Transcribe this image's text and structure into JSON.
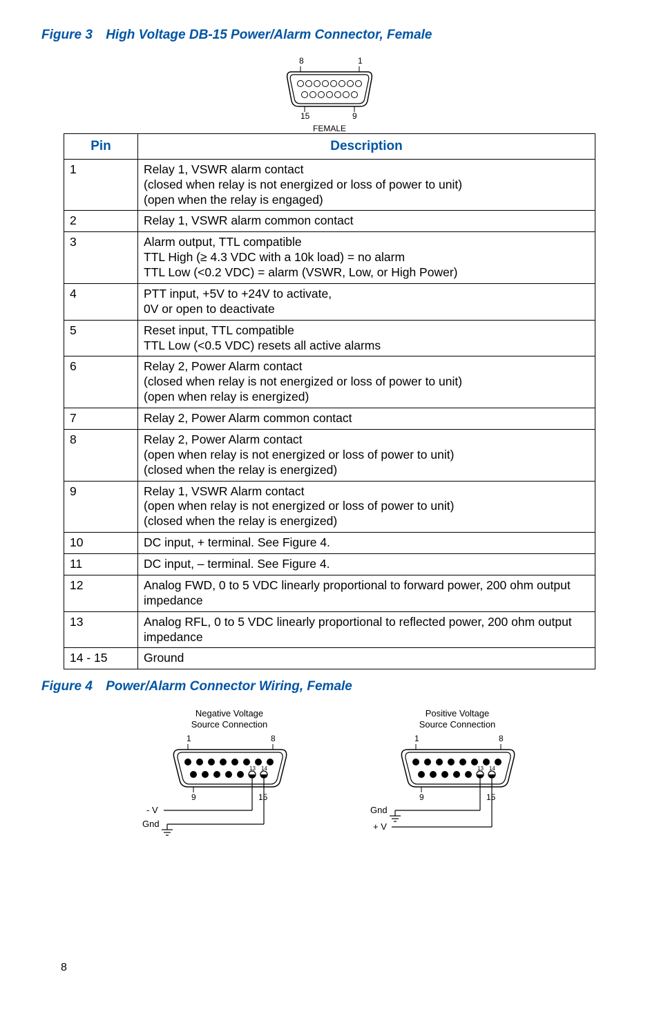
{
  "figure3": {
    "label": "Figure 3",
    "title": "High Voltage DB-15 Power/Alarm Connector, Female",
    "connector": {
      "top_left_num": "8",
      "top_right_num": "1",
      "bottom_left_num": "15",
      "bottom_right_num": "9",
      "caption": "FEMALE"
    },
    "table": {
      "header_pin": "Pin",
      "header_desc": "Description",
      "rows": [
        {
          "pin": "1",
          "desc": "Relay 1, VSWR alarm contact\n(closed when relay is not energized or loss of power to unit)\n(open when the relay is engaged)"
        },
        {
          "pin": "2",
          "desc": "Relay 1, VSWR alarm common contact"
        },
        {
          "pin": "3",
          "desc": "Alarm output, TTL compatible\nTTL High (≥ 4.3 VDC with a 10k load) = no alarm\nTTL Low (<0.2 VDC) = alarm (VSWR, Low, or High Power)"
        },
        {
          "pin": "4",
          "desc": "PTT input, +5V to +24V to activate,\n0V or open to deactivate"
        },
        {
          "pin": "5",
          "desc": "Reset input, TTL compatible\nTTL Low (<0.5 VDC) resets all active alarms"
        },
        {
          "pin": "6",
          "desc": "Relay 2, Power Alarm contact\n(closed when relay is not energized or loss of power to unit)\n(open when relay is energized)"
        },
        {
          "pin": "7",
          "desc": "Relay 2, Power Alarm common contact"
        },
        {
          "pin": "8",
          "desc": "Relay 2, Power Alarm contact\n(open when relay is not energized or loss of power to unit)\n(closed when the relay is energized)"
        },
        {
          "pin": "9",
          "desc": "Relay 1, VSWR Alarm contact\n(open when relay is not energized or loss of power to unit)\n(closed when the relay is energized)"
        },
        {
          "pin": "10",
          "desc": "DC input, + terminal. See Figure 4."
        },
        {
          "pin": "11",
          "desc": "DC input, – terminal. See Figure 4."
        },
        {
          "pin": "12",
          "desc": "Analog FWD, 0 to 5 VDC linearly proportional to forward power, 200 ohm output impedance"
        },
        {
          "pin": "13",
          "desc": "Analog RFL, 0 to 5 VDC linearly proportional to reflected power, 200 ohm output impedance"
        },
        {
          "pin": "14 - 15",
          "desc": "Ground"
        }
      ]
    }
  },
  "figure4": {
    "label": "Figure 4",
    "title": "Power/Alarm Connector Wiring, Female",
    "diagrams": {
      "left": {
        "caption_l1": "Negative Voltage",
        "caption_l2": "Source Connection",
        "top_left": "1",
        "top_right": "8",
        "bottom_left": "9",
        "bottom_right": "15",
        "pin13": "13",
        "pin14": "14",
        "lead1": "- V",
        "lead2": "Gnd"
      },
      "right": {
        "caption_l1": "Positive Voltage",
        "caption_l2": "Source Connection",
        "top_left": "1",
        "top_right": "8",
        "bottom_left": "9",
        "bottom_right": "15",
        "pin13": "13",
        "pin14": "14",
        "lead1": "Gnd",
        "lead2": "+ V"
      }
    }
  },
  "page_number": "8",
  "colors": {
    "heading": "#0055a5",
    "text": "#000000",
    "border": "#000000"
  }
}
